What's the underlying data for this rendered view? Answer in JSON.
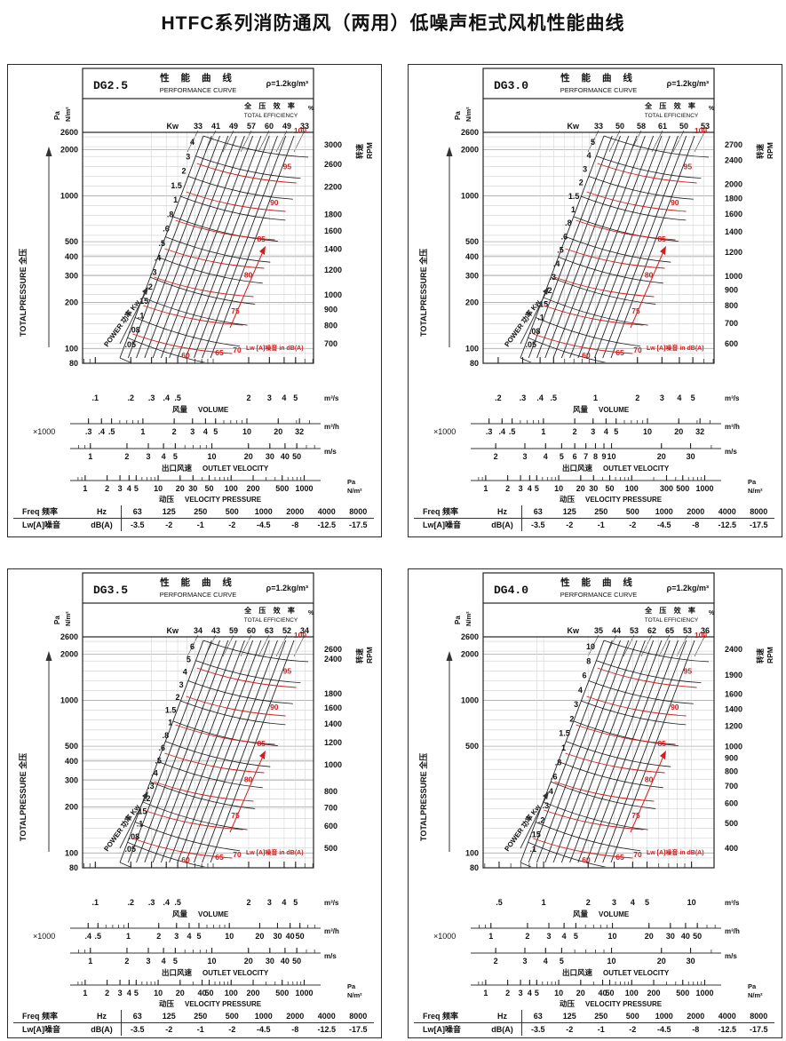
{
  "page": {
    "title": "HTFC系列消防通风（两用）低噪声柜式风机性能曲线"
  },
  "shared": {
    "title_cn": "性 能 曲 线",
    "title_en": "PERFORMANCE CURVE",
    "density": "ρ=1.2kg/m³",
    "eff_cn": "全 压 效 率",
    "eff_en": "TOTAL EFFICIENCY",
    "eff_pct": "%",
    "kw_label": "Kw",
    "power_label": "POWER 功率  Kw",
    "totalpressure_label": "TOTALPRESSURE  全压",
    "pa_label": "Pa",
    "nm2_label": "N/m²",
    "rpm_cn": "转速",
    "rpm_en": "RPM",
    "lw_red_label": "Lw [A]噪音  in dB(A)",
    "x1000": "×1000",
    "unit_m3s": "m³/s",
    "unit_m3h": "m³/h",
    "unit_ms": "m/s",
    "cap_volume_cn": "风量",
    "cap_volume_en": "VOLUME",
    "cap_outlet_cn": "出口风速",
    "cap_outlet_en": "OUTLET  VELOCITY",
    "cap_vp_cn": "动压",
    "cap_vp_en": "VELOCITY  PRESSURE",
    "noise_table": {
      "freq_label": "Freq 频率",
      "freq_unit": "Hz",
      "lw_label": "Lw[A]噪音",
      "lw_unit": "dB(A)",
      "freqs": [
        "63",
        "125",
        "250",
        "500",
        "1000",
        "2000",
        "4000",
        "8000"
      ],
      "corrections": [
        "-3.5",
        "-2",
        "-1",
        "-2",
        "-4.5",
        "-8",
        "-12.5",
        "-17.5"
      ]
    }
  },
  "chart_data": [
    {
      "type": "line",
      "model": "DG2.5",
      "title": "性能曲线 PERFORMANCE CURVE",
      "ylabel": "TOTALPRESSURE 全压 (Pa N/m²)",
      "xlabel": "风量 VOLUME",
      "y_axis": {
        "scale": "log",
        "ticks": [
          2600,
          2000,
          1000,
          500,
          400,
          300,
          200,
          100,
          80
        ]
      },
      "rpm_ticks": [
        3000,
        2600,
        2200,
        1800,
        1600,
        1400,
        1200,
        1000,
        900,
        800,
        700
      ],
      "power_kw_lines": [
        4,
        3,
        2,
        1.5,
        1,
        0.8,
        0.6,
        0.5,
        0.4,
        0.3,
        0.2,
        0.15,
        0.1,
        0.08,
        0.05
      ],
      "efficiency_pct": [
        33,
        41,
        49,
        57,
        60,
        49,
        33
      ],
      "noise_dba_contours": [
        60,
        65,
        70,
        75,
        80,
        85,
        90,
        95,
        100
      ],
      "volume_m3s_ticks": [
        0.1,
        0.2,
        0.3,
        0.4,
        0.5,
        2,
        3,
        4,
        5
      ],
      "volume_x1000_m3h_ticks": [
        0.3,
        0.4,
        0.5,
        1,
        2,
        3,
        4,
        5,
        10,
        20,
        32
      ],
      "outlet_velocity_ms_ticks": [
        1,
        2,
        3,
        4,
        5,
        10,
        20,
        30,
        40,
        50
      ],
      "velocity_pressure_pa_ticks": [
        1,
        2,
        3,
        4,
        5,
        10,
        20,
        30,
        50,
        100,
        200,
        500,
        1000
      ]
    },
    {
      "type": "line",
      "model": "DG3.0",
      "title": "性能曲线 PERFORMANCE CURVE",
      "ylabel": "TOTALPRESSURE 全压 (Pa N/m²)",
      "xlabel": "风量 VOLUME",
      "y_axis": {
        "scale": "log",
        "ticks": [
          2600,
          2000,
          1000,
          500,
          400,
          300,
          200,
          100,
          80
        ]
      },
      "rpm_ticks": [
        2700,
        2400,
        2000,
        1800,
        1600,
        1400,
        1200,
        1000,
        900,
        800,
        700,
        600
      ],
      "power_kw_lines": [
        5,
        4,
        3,
        2,
        1.5,
        1,
        0.8,
        0.6,
        0.5,
        0.4,
        0.3,
        0.2,
        0.15,
        0.1,
        0.08,
        0.05
      ],
      "efficiency_pct": [
        33,
        50,
        58,
        61,
        50,
        53
      ],
      "noise_dba_contours": [
        60,
        65,
        70,
        75,
        80,
        85,
        90,
        95,
        100
      ],
      "volume_m3s_ticks": [
        0.2,
        0.3,
        0.4,
        0.5,
        1,
        2,
        3,
        4,
        5
      ],
      "volume_x1000_m3h_ticks": [
        0.3,
        0.4,
        0.5,
        1,
        2,
        3,
        4,
        5,
        10,
        20,
        32
      ],
      "outlet_velocity_ms_ticks": [
        2,
        3,
        4,
        5,
        6,
        7,
        8,
        9,
        10,
        20,
        30
      ],
      "velocity_pressure_pa_ticks": [
        1,
        2,
        3,
        4,
        5,
        10,
        20,
        30,
        50,
        100,
        300,
        500,
        1000
      ]
    },
    {
      "type": "line",
      "model": "DG3.5",
      "title": "性能曲线 PERFORMANCE CURVE",
      "ylabel": "TOTALPRESSURE 全压 (Pa N/m²)",
      "xlabel": "风量 VOLUME",
      "y_axis": {
        "scale": "log",
        "ticks": [
          2600,
          2000,
          1000,
          500,
          400,
          300,
          200,
          100,
          80
        ]
      },
      "rpm_ticks": [
        2600,
        2400,
        1800,
        1600,
        1400,
        1200,
        1000,
        800,
        700,
        600,
        500
      ],
      "power_kw_lines": [
        6,
        5,
        4,
        3,
        2,
        1.5,
        1,
        0.8,
        0.6,
        0.5,
        0.4,
        0.3,
        0.2,
        0.15,
        0.1,
        0.08,
        0.05
      ],
      "efficiency_pct": [
        34,
        43,
        59,
        60,
        63,
        52,
        34
      ],
      "noise_dba_contours": [
        60,
        65,
        70,
        75,
        80,
        85,
        90,
        95,
        100
      ],
      "volume_m3s_ticks": [
        0.1,
        0.2,
        0.3,
        0.4,
        0.5,
        2,
        3,
        4,
        5
      ],
      "volume_x1000_m3h_ticks": [
        0.4,
        0.5,
        1,
        2,
        3,
        4,
        5,
        10,
        20,
        30,
        40,
        50
      ],
      "outlet_velocity_ms_ticks": [
        1,
        2,
        3,
        4,
        5,
        10,
        20,
        30,
        40,
        50
      ],
      "velocity_pressure_pa_ticks": [
        1,
        2,
        3,
        4,
        5,
        10,
        20,
        40,
        50,
        100,
        200,
        500,
        1000
      ]
    },
    {
      "type": "line",
      "model": "DG4.0",
      "title": "性能曲线 PERFORMANCE CURVE",
      "ylabel": "TOTALPRESSURE 全压 (Pa N/m²)",
      "xlabel": "风量 VOLUME",
      "y_axis": {
        "scale": "log",
        "ticks": [
          2600,
          2000,
          1000,
          500,
          100,
          80
        ]
      },
      "rpm_ticks": [
        2400,
        1900,
        1600,
        1400,
        1200,
        1000,
        900,
        800,
        700,
        600,
        500,
        400
      ],
      "power_kw_lines": [
        10,
        8,
        6,
        4,
        3,
        2,
        1.5,
        1,
        0.8,
        0.6,
        0.4,
        0.3,
        0.2,
        0.15,
        0.1
      ],
      "efficiency_pct": [
        35,
        44,
        53,
        62,
        65,
        53,
        36
      ],
      "noise_dba_contours": [
        60,
        65,
        70,
        75,
        80,
        85,
        90,
        95,
        100
      ],
      "volume_m3s_ticks": [
        0.5,
        1,
        2,
        3,
        4,
        5,
        10
      ],
      "volume_x1000_m3h_ticks": [
        1,
        2,
        3,
        4,
        5,
        10,
        20,
        30,
        40,
        50
      ],
      "outlet_velocity_ms_ticks": [
        2,
        3,
        4,
        5,
        10,
        20,
        30
      ],
      "velocity_pressure_pa_ticks": [
        1,
        2,
        3,
        4,
        5,
        10,
        20,
        40,
        50,
        100,
        200,
        500,
        1000
      ]
    }
  ]
}
